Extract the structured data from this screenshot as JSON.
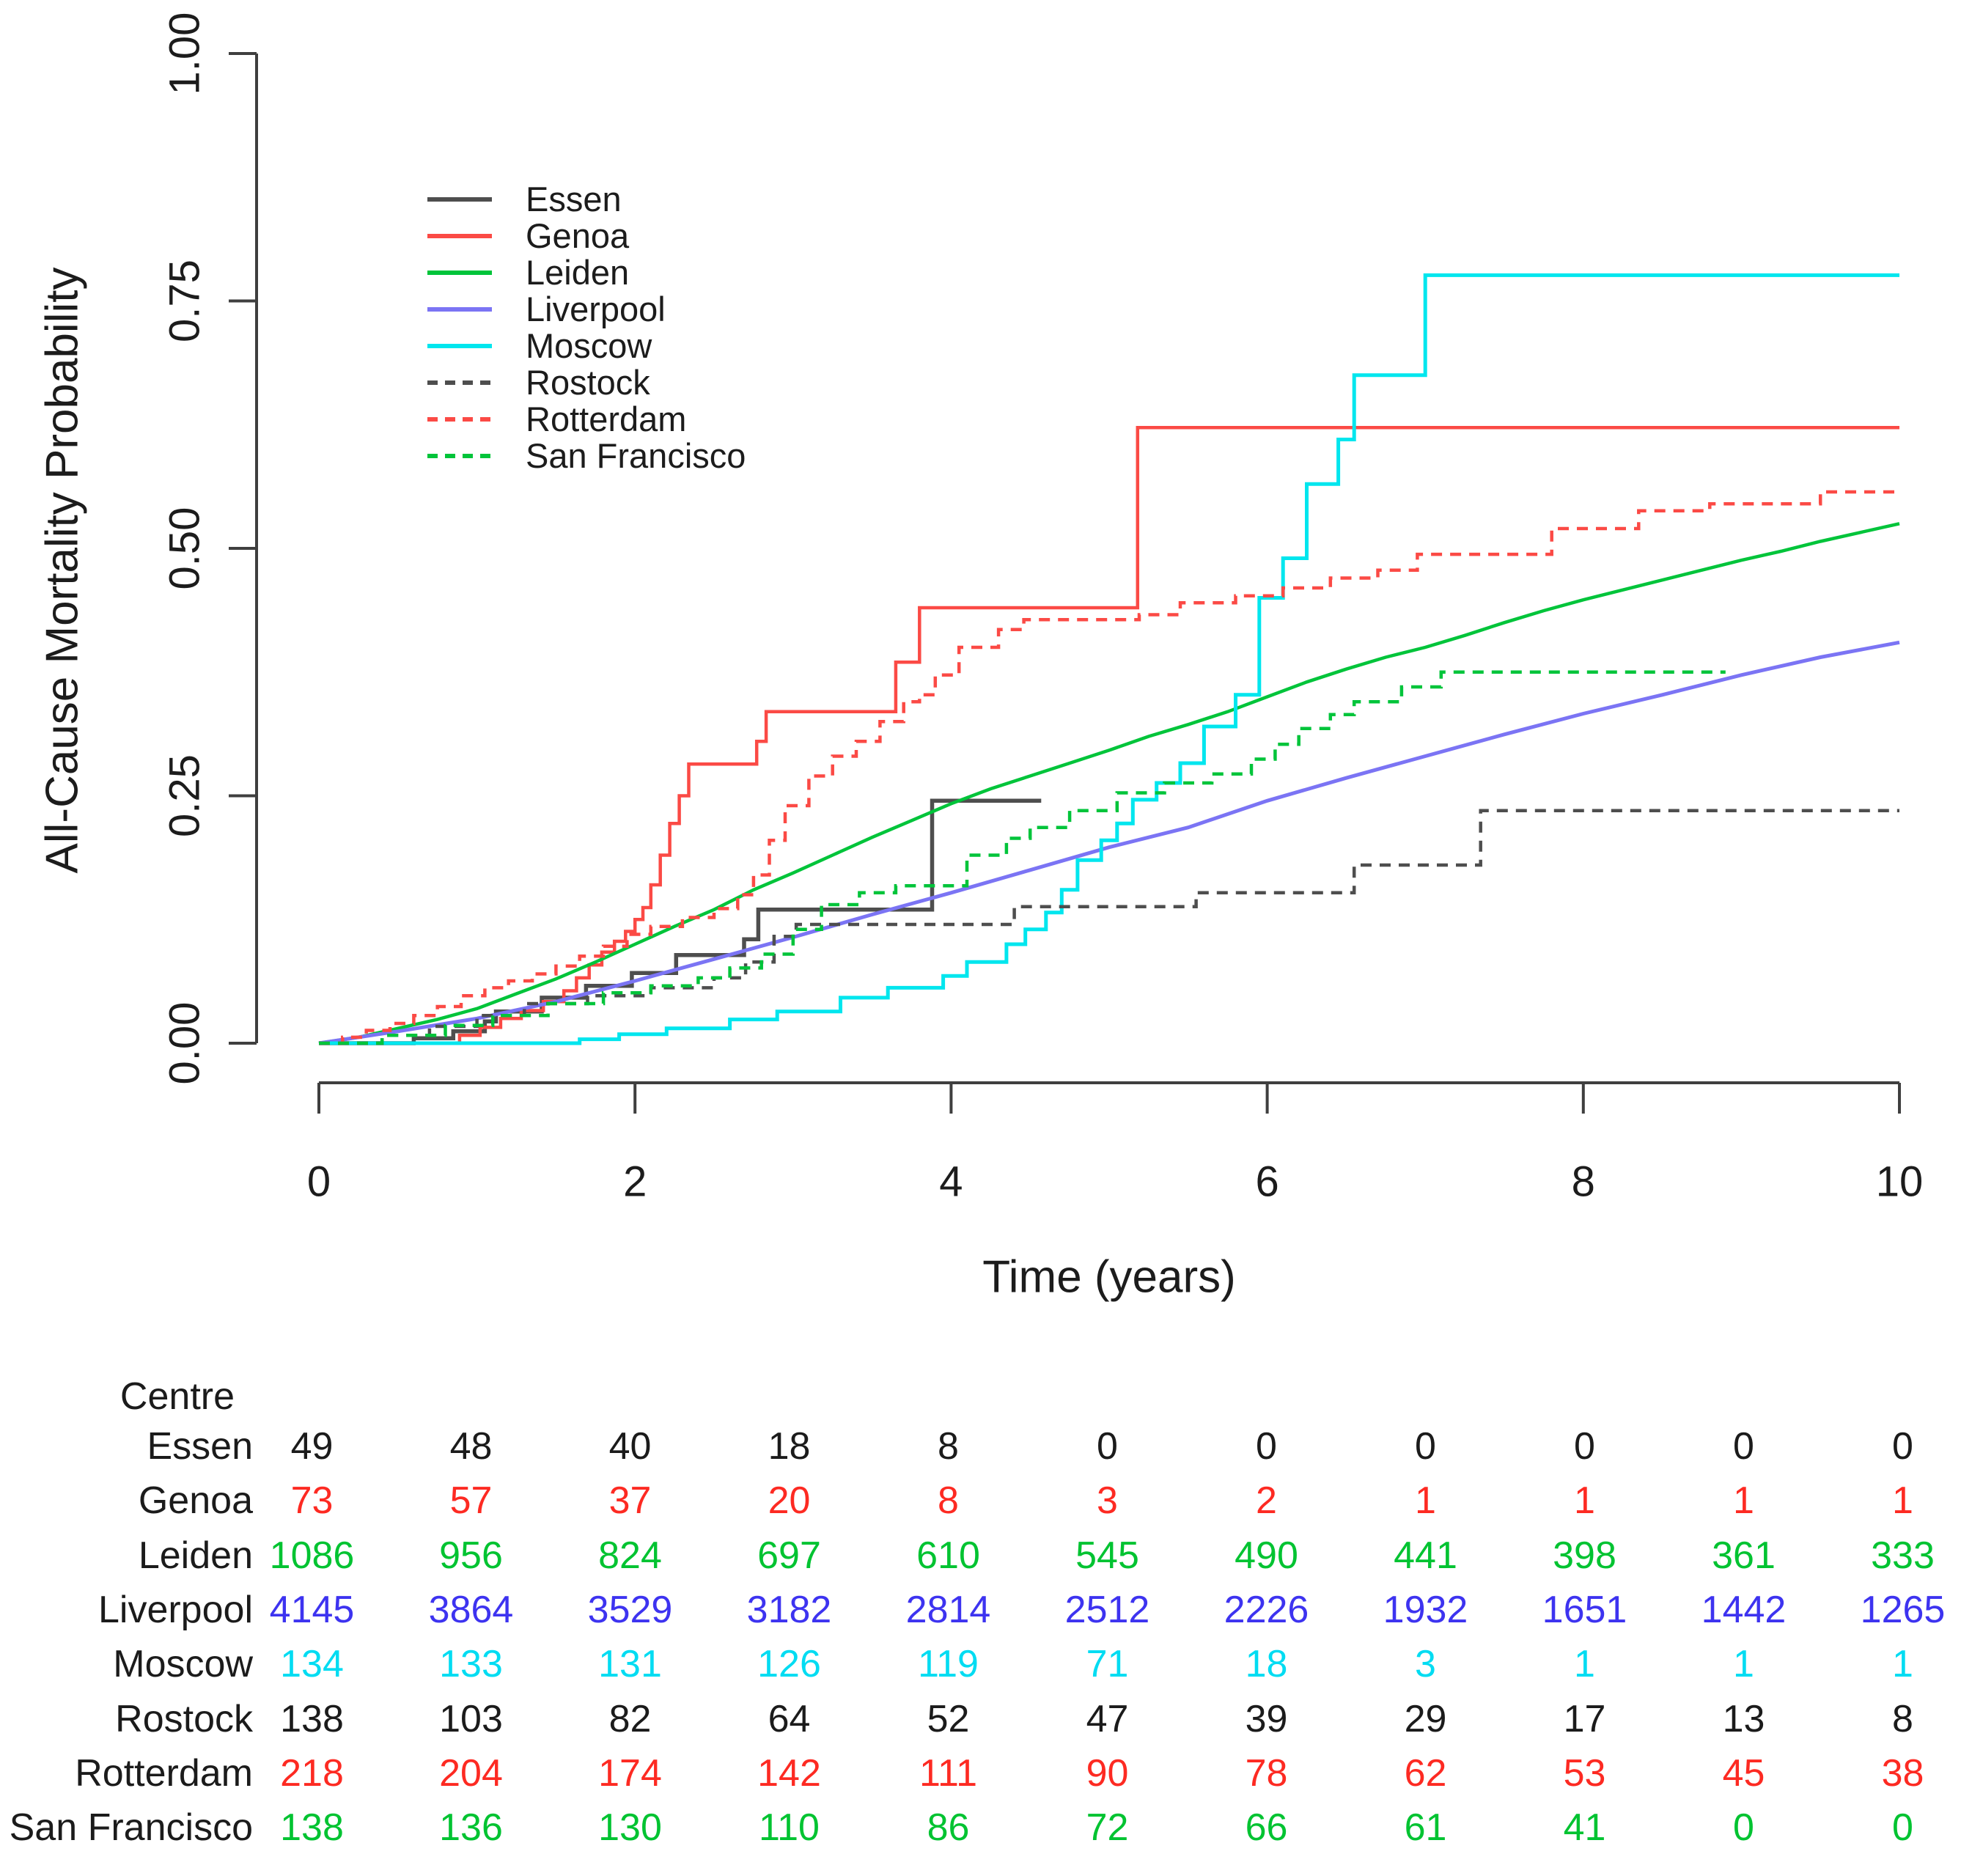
{
  "chart": {
    "ylabel": "All-Cause Mortality Probability",
    "xlabel": "Time (years)"
  },
  "chart_data": {
    "type": "line",
    "subtype": "cumulative-incidence-step-curves",
    "title": "",
    "xlabel": "Time (years)",
    "ylabel": "All-Cause Mortality Probability",
    "xlim": [
      0,
      10
    ],
    "ylim": [
      0,
      1
    ],
    "x_ticks": [
      0,
      2,
      4,
      6,
      8,
      10
    ],
    "y_ticks": [
      0,
      0.25,
      0.5,
      0.75,
      1.0
    ],
    "y_tick_labels": [
      "0.00",
      "0.25",
      "0.50",
      "0.75",
      "1.00"
    ],
    "grid": false,
    "legend_position": "inside-upper-left",
    "axis_color": "#3f3f3f",
    "series": [
      {
        "name": "Essen",
        "color": "#4e4e4e",
        "dash": false,
        "width": 5.5,
        "interp": "step",
        "points": [
          [
            0,
            0
          ],
          [
            0.6,
            0.005
          ],
          [
            0.85,
            0.012
          ],
          [
            1.05,
            0.022
          ],
          [
            1.12,
            0.032
          ],
          [
            1.41,
            0.046
          ],
          [
            1.69,
            0.058
          ],
          [
            1.98,
            0.071
          ],
          [
            2.26,
            0.089
          ],
          [
            2.69,
            0.105
          ],
          [
            2.78,
            0.135
          ],
          [
            3.88,
            0.245
          ],
          [
            4.57,
            0.245
          ]
        ]
      },
      {
        "name": "Genoa",
        "color": "#fb4a45",
        "dash": false,
        "width": 4.5,
        "interp": "step",
        "points": [
          [
            0,
            0
          ],
          [
            0.89,
            0.008
          ],
          [
            1.02,
            0.016
          ],
          [
            1.15,
            0.025
          ],
          [
            1.28,
            0.033
          ],
          [
            1.42,
            0.042
          ],
          [
            1.55,
            0.053
          ],
          [
            1.63,
            0.066
          ],
          [
            1.71,
            0.079
          ],
          [
            1.79,
            0.092
          ],
          [
            1.87,
            0.103
          ],
          [
            1.94,
            0.113
          ],
          [
            2.0,
            0.125
          ],
          [
            2.05,
            0.137
          ],
          [
            2.1,
            0.16
          ],
          [
            2.16,
            0.19
          ],
          [
            2.22,
            0.222
          ],
          [
            2.28,
            0.25
          ],
          [
            2.34,
            0.282
          ],
          [
            2.77,
            0.305
          ],
          [
            2.83,
            0.335
          ],
          [
            3.65,
            0.385
          ],
          [
            3.8,
            0.44
          ],
          [
            5.18,
            0.622
          ],
          [
            10,
            0.622
          ]
        ]
      },
      {
        "name": "Leiden",
        "color": "#00c43a",
        "dash": false,
        "width": 4.5,
        "interp": "linear",
        "points": [
          [
            0,
            0
          ],
          [
            0.25,
            0.006
          ],
          [
            0.5,
            0.015
          ],
          [
            0.75,
            0.024
          ],
          [
            1,
            0.035
          ],
          [
            1.25,
            0.05
          ],
          [
            1.5,
            0.065
          ],
          [
            1.75,
            0.082
          ],
          [
            2,
            0.1
          ],
          [
            2.25,
            0.118
          ],
          [
            2.5,
            0.135
          ],
          [
            2.75,
            0.155
          ],
          [
            3,
            0.172
          ],
          [
            3.25,
            0.19
          ],
          [
            3.5,
            0.208
          ],
          [
            3.75,
            0.225
          ],
          [
            4,
            0.242
          ],
          [
            4.25,
            0.257
          ],
          [
            4.5,
            0.27
          ],
          [
            4.75,
            0.283
          ],
          [
            5,
            0.296
          ],
          [
            5.25,
            0.31
          ],
          [
            5.5,
            0.322
          ],
          [
            5.75,
            0.335
          ],
          [
            6,
            0.35
          ],
          [
            6.25,
            0.365
          ],
          [
            6.5,
            0.378
          ],
          [
            6.75,
            0.39
          ],
          [
            7,
            0.4
          ],
          [
            7.25,
            0.412
          ],
          [
            7.5,
            0.425
          ],
          [
            7.75,
            0.437
          ],
          [
            8,
            0.448
          ],
          [
            8.25,
            0.458
          ],
          [
            8.5,
            0.468
          ],
          [
            8.75,
            0.478
          ],
          [
            9,
            0.488
          ],
          [
            9.25,
            0.497
          ],
          [
            9.5,
            0.507
          ],
          [
            9.75,
            0.516
          ],
          [
            10,
            0.525
          ]
        ]
      },
      {
        "name": "Liverpool",
        "color": "#7b74f4",
        "dash": false,
        "width": 5,
        "interp": "linear",
        "points": [
          [
            0,
            0
          ],
          [
            0.5,
            0.012
          ],
          [
            1,
            0.025
          ],
          [
            1.5,
            0.042
          ],
          [
            2,
            0.063
          ],
          [
            2.5,
            0.085
          ],
          [
            3,
            0.107
          ],
          [
            3.5,
            0.13
          ],
          [
            4,
            0.152
          ],
          [
            4.5,
            0.175
          ],
          [
            5,
            0.198
          ],
          [
            5.5,
            0.218
          ],
          [
            6,
            0.245
          ],
          [
            6.5,
            0.268
          ],
          [
            7,
            0.29
          ],
          [
            7.5,
            0.312
          ],
          [
            8,
            0.333
          ],
          [
            8.5,
            0.352
          ],
          [
            9,
            0.372
          ],
          [
            9.5,
            0.39
          ],
          [
            10,
            0.405
          ]
        ]
      },
      {
        "name": "Moscow",
        "color": "#00e6ee",
        "dash": false,
        "width": 5,
        "interp": "step",
        "points": [
          [
            0,
            0
          ],
          [
            1.65,
            0.004
          ],
          [
            1.9,
            0.009
          ],
          [
            2.2,
            0.015
          ],
          [
            2.6,
            0.024
          ],
          [
            2.9,
            0.032
          ],
          [
            3.3,
            0.046
          ],
          [
            3.6,
            0.056
          ],
          [
            3.95,
            0.068
          ],
          [
            4.1,
            0.082
          ],
          [
            4.35,
            0.1
          ],
          [
            4.47,
            0.115
          ],
          [
            4.6,
            0.132
          ],
          [
            4.7,
            0.155
          ],
          [
            4.8,
            0.185
          ],
          [
            4.95,
            0.205
          ],
          [
            5.05,
            0.222
          ],
          [
            5.15,
            0.246
          ],
          [
            5.3,
            0.263
          ],
          [
            5.45,
            0.283
          ],
          [
            5.6,
            0.32
          ],
          [
            5.8,
            0.352
          ],
          [
            5.95,
            0.45
          ],
          [
            6.1,
            0.49
          ],
          [
            6.25,
            0.565
          ],
          [
            6.45,
            0.61
          ],
          [
            6.55,
            0.675
          ],
          [
            7.0,
            0.776
          ],
          [
            10,
            0.776
          ]
        ]
      },
      {
        "name": "Rostock",
        "color": "#4e4e4e",
        "dash": true,
        "width": 4.5,
        "interp": "step",
        "points": [
          [
            0,
            0
          ],
          [
            0.4,
            0.008
          ],
          [
            0.7,
            0.017
          ],
          [
            1.0,
            0.028
          ],
          [
            1.3,
            0.04
          ],
          [
            1.7,
            0.048
          ],
          [
            2.1,
            0.056
          ],
          [
            2.5,
            0.066
          ],
          [
            2.7,
            0.082
          ],
          [
            2.88,
            0.108
          ],
          [
            3.02,
            0.12
          ],
          [
            4.4,
            0.138
          ],
          [
            5.55,
            0.152
          ],
          [
            6.55,
            0.18
          ],
          [
            7.35,
            0.235
          ],
          [
            10,
            0.235
          ]
        ]
      },
      {
        "name": "Rotterdam",
        "color": "#fb4a45",
        "dash": true,
        "width": 4.5,
        "interp": "step",
        "points": [
          [
            0,
            0
          ],
          [
            0.15,
            0.006
          ],
          [
            0.3,
            0.013
          ],
          [
            0.45,
            0.02
          ],
          [
            0.6,
            0.028
          ],
          [
            0.75,
            0.037
          ],
          [
            0.9,
            0.048
          ],
          [
            1.05,
            0.056
          ],
          [
            1.2,
            0.063
          ],
          [
            1.35,
            0.07
          ],
          [
            1.5,
            0.078
          ],
          [
            1.65,
            0.088
          ],
          [
            1.8,
            0.098
          ],
          [
            1.95,
            0.11
          ],
          [
            2.1,
            0.118
          ],
          [
            2.3,
            0.127
          ],
          [
            2.5,
            0.136
          ],
          [
            2.65,
            0.15
          ],
          [
            2.75,
            0.17
          ],
          [
            2.85,
            0.205
          ],
          [
            2.95,
            0.24
          ],
          [
            3.1,
            0.27
          ],
          [
            3.25,
            0.29
          ],
          [
            3.4,
            0.305
          ],
          [
            3.55,
            0.325
          ],
          [
            3.7,
            0.345
          ],
          [
            3.8,
            0.352
          ],
          [
            3.9,
            0.372
          ],
          [
            4.05,
            0.4
          ],
          [
            4.3,
            0.418
          ],
          [
            4.46,
            0.428
          ],
          [
            5.19,
            0.433
          ],
          [
            5.45,
            0.445
          ],
          [
            5.8,
            0.452
          ],
          [
            6.1,
            0.46
          ],
          [
            6.4,
            0.47
          ],
          [
            6.7,
            0.478
          ],
          [
            6.95,
            0.494
          ],
          [
            7.8,
            0.52
          ],
          [
            8.35,
            0.538
          ],
          [
            8.8,
            0.545
          ],
          [
            9.5,
            0.557
          ],
          [
            10,
            0.557
          ]
        ]
      },
      {
        "name": "San Francisco",
        "color": "#00c43a",
        "dash": true,
        "width": 4.5,
        "interp": "step",
        "points": [
          [
            0,
            0
          ],
          [
            0.4,
            0.008
          ],
          [
            0.8,
            0.018
          ],
          [
            1.1,
            0.028
          ],
          [
            1.45,
            0.04
          ],
          [
            1.8,
            0.051
          ],
          [
            2.1,
            0.058
          ],
          [
            2.4,
            0.066
          ],
          [
            2.6,
            0.076
          ],
          [
            2.8,
            0.09
          ],
          [
            3.0,
            0.115
          ],
          [
            3.18,
            0.14
          ],
          [
            3.42,
            0.152
          ],
          [
            3.65,
            0.159
          ],
          [
            4.1,
            0.19
          ],
          [
            4.35,
            0.207
          ],
          [
            4.5,
            0.218
          ],
          [
            4.75,
            0.235
          ],
          [
            5.05,
            0.253
          ],
          [
            5.35,
            0.263
          ],
          [
            5.65,
            0.272
          ],
          [
            5.9,
            0.287
          ],
          [
            6.05,
            0.302
          ],
          [
            6.2,
            0.318
          ],
          [
            6.4,
            0.332
          ],
          [
            6.55,
            0.345
          ],
          [
            6.85,
            0.36
          ],
          [
            7.1,
            0.375
          ],
          [
            8.9,
            0.375
          ]
        ]
      }
    ]
  },
  "legend": {
    "entries": [
      {
        "label": "Essen",
        "color": "#4e4e4e",
        "dash": false
      },
      {
        "label": "Genoa",
        "color": "#fb4a45",
        "dash": false
      },
      {
        "label": "Leiden",
        "color": "#00c43a",
        "dash": false
      },
      {
        "label": "Liverpool",
        "color": "#7b74f4",
        "dash": false
      },
      {
        "label": "Moscow",
        "color": "#00e6ee",
        "dash": false
      },
      {
        "label": "Rostock",
        "color": "#4e4e4e",
        "dash": true
      },
      {
        "label": "Rotterdam",
        "color": "#fb4a45",
        "dash": true
      },
      {
        "label": "San Francisco",
        "color": "#00c43a",
        "dash": true
      }
    ]
  },
  "table": {
    "header": "Centre",
    "time_points": [
      0,
      1,
      2,
      3,
      4,
      5,
      6,
      7,
      8,
      9,
      10
    ],
    "rows": [
      {
        "label": "Essen",
        "color": "#1b1b1b",
        "values": [
          49,
          48,
          40,
          18,
          8,
          0,
          0,
          0,
          0,
          0,
          0
        ]
      },
      {
        "label": "Genoa",
        "color": "#fd2a22",
        "values": [
          73,
          57,
          37,
          20,
          8,
          3,
          2,
          1,
          1,
          1,
          1
        ]
      },
      {
        "label": "Leiden",
        "color": "#00c331",
        "values": [
          1086,
          956,
          824,
          697,
          610,
          545,
          490,
          441,
          398,
          361,
          333
        ]
      },
      {
        "label": "Liverpool",
        "color": "#3d33f0",
        "values": [
          4145,
          3864,
          3529,
          3182,
          2814,
          2512,
          2226,
          1932,
          1651,
          1442,
          1265
        ]
      },
      {
        "label": "Moscow",
        "color": "#00dcf2",
        "values": [
          134,
          133,
          131,
          126,
          119,
          71,
          18,
          3,
          1,
          1,
          1
        ]
      },
      {
        "label": "Rostock",
        "color": "#1b1b1b",
        "values": [
          138,
          103,
          82,
          64,
          52,
          47,
          39,
          29,
          17,
          13,
          8
        ]
      },
      {
        "label": "Rotterdam",
        "color": "#fd2a22",
        "values": [
          218,
          204,
          174,
          142,
          111,
          90,
          78,
          62,
          53,
          45,
          38
        ]
      },
      {
        "label": "San Francisco",
        "color": "#00c331",
        "values": [
          138,
          136,
          130,
          110,
          86,
          72,
          66,
          61,
          41,
          0,
          0
        ]
      }
    ]
  }
}
